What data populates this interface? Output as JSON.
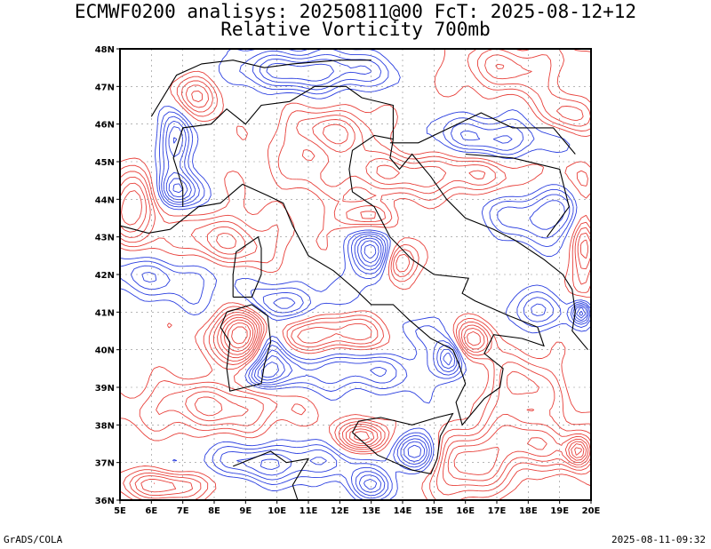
{
  "title_line1": "ECMWF0200 analisys: 20250811@00 FcT: 2025-08-12+12",
  "title_line2": "Relative Vorticity 700mb",
  "footer_left": "GrADS/COLA",
  "footer_right": "2025-08-11-09:32",
  "colors": {
    "positive": "#e8403a",
    "negative": "#2b3fe0",
    "coast": "#000000",
    "grid": "#8a8a8a"
  },
  "axes": {
    "lat_labels": [
      "48N",
      "47N",
      "46N",
      "45N",
      "44N",
      "43N",
      "42N",
      "41N",
      "40N",
      "39N",
      "38N",
      "37N",
      "36N"
    ],
    "lon_labels": [
      "5E",
      "6E",
      "7E",
      "8E",
      "9E",
      "10E",
      "11E",
      "12E",
      "13E",
      "14E",
      "15E",
      "16E",
      "17E",
      "18E",
      "19E",
      "20E"
    ]
  }
}
